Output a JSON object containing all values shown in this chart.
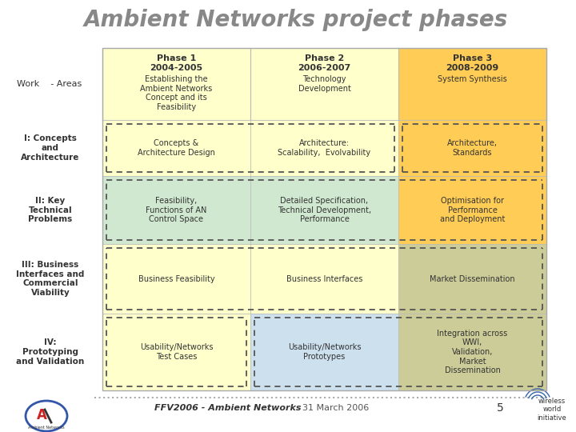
{
  "title": "Ambient Networks project phases",
  "title_color": "#888888",
  "bg_color": "#ffffff",
  "phases": [
    {
      "label": "Phase 1",
      "year": "2004-2005",
      "desc": "Establishing the\nAmbient Networks\nConcept and its\nFeasibility",
      "color": "#ffffcc"
    },
    {
      "label": "Phase 2",
      "year": "2006-2007",
      "desc": "Technology\nDevelopment",
      "color": "#ffffcc"
    },
    {
      "label": "Phase 3",
      "year": "2008-2009",
      "desc": "System Synthesis",
      "color": "#ffcc55"
    }
  ],
  "rows": [
    {
      "label": "I: Concepts\nand\nArchitecture",
      "cells": [
        {
          "text": "Concepts &\nArchitecture Design",
          "bg": "#ffffcc"
        },
        {
          "text": "Architecture:\nScalability,  Evolvability",
          "bg": "#ffffcc"
        },
        {
          "text": "Architecture,\nStandards",
          "bg": "#ffcc55"
        }
      ],
      "dashed_groups": [
        [
          0,
          1
        ],
        [
          2
        ]
      ]
    },
    {
      "label": "II: Key\nTechnical\nProblems",
      "cells": [
        {
          "text": "Feasibility,\nFunctions of AN\nControl Space",
          "bg": "#d0e8d0"
        },
        {
          "text": "Detailed Specification,\nTechnical Development,\nPerformance",
          "bg": "#d0e8d0"
        },
        {
          "text": "Optimisation for\nPerformance\nand Deployment",
          "bg": "#ffcc55"
        }
      ],
      "dashed_groups": [
        [
          0,
          1,
          2
        ]
      ]
    },
    {
      "label": "III: Business\nInterfaces and\nCommercial\nViability",
      "cells": [
        {
          "text": "Business Feasibility",
          "bg": "#ffffcc"
        },
        {
          "text": "Business Interfaces",
          "bg": "#ffffcc"
        },
        {
          "text": "Market Dissemination",
          "bg": "#cccc99"
        }
      ],
      "dashed_groups": [
        [
          0,
          1,
          2
        ]
      ]
    },
    {
      "label": "IV:\nPrototyping\nand Validation",
      "cells": [
        {
          "text": "Usability/Networks\nTest Cases",
          "bg": "#ffffcc"
        },
        {
          "text": "Usability/Networks\nPrototypes",
          "bg": "#cce0ee"
        },
        {
          "text": "Integration across\nWWI,\nValidation,\nMarket\nDissemination",
          "bg": "#cccc99"
        }
      ],
      "dashed_groups": [
        [
          0
        ],
        [
          1,
          2
        ]
      ]
    }
  ],
  "footer_text": "FFV2006 - Ambient Networks",
  "footer_date": "31 March 2006",
  "footer_num": "5",
  "work_label": "Work    - Areas"
}
